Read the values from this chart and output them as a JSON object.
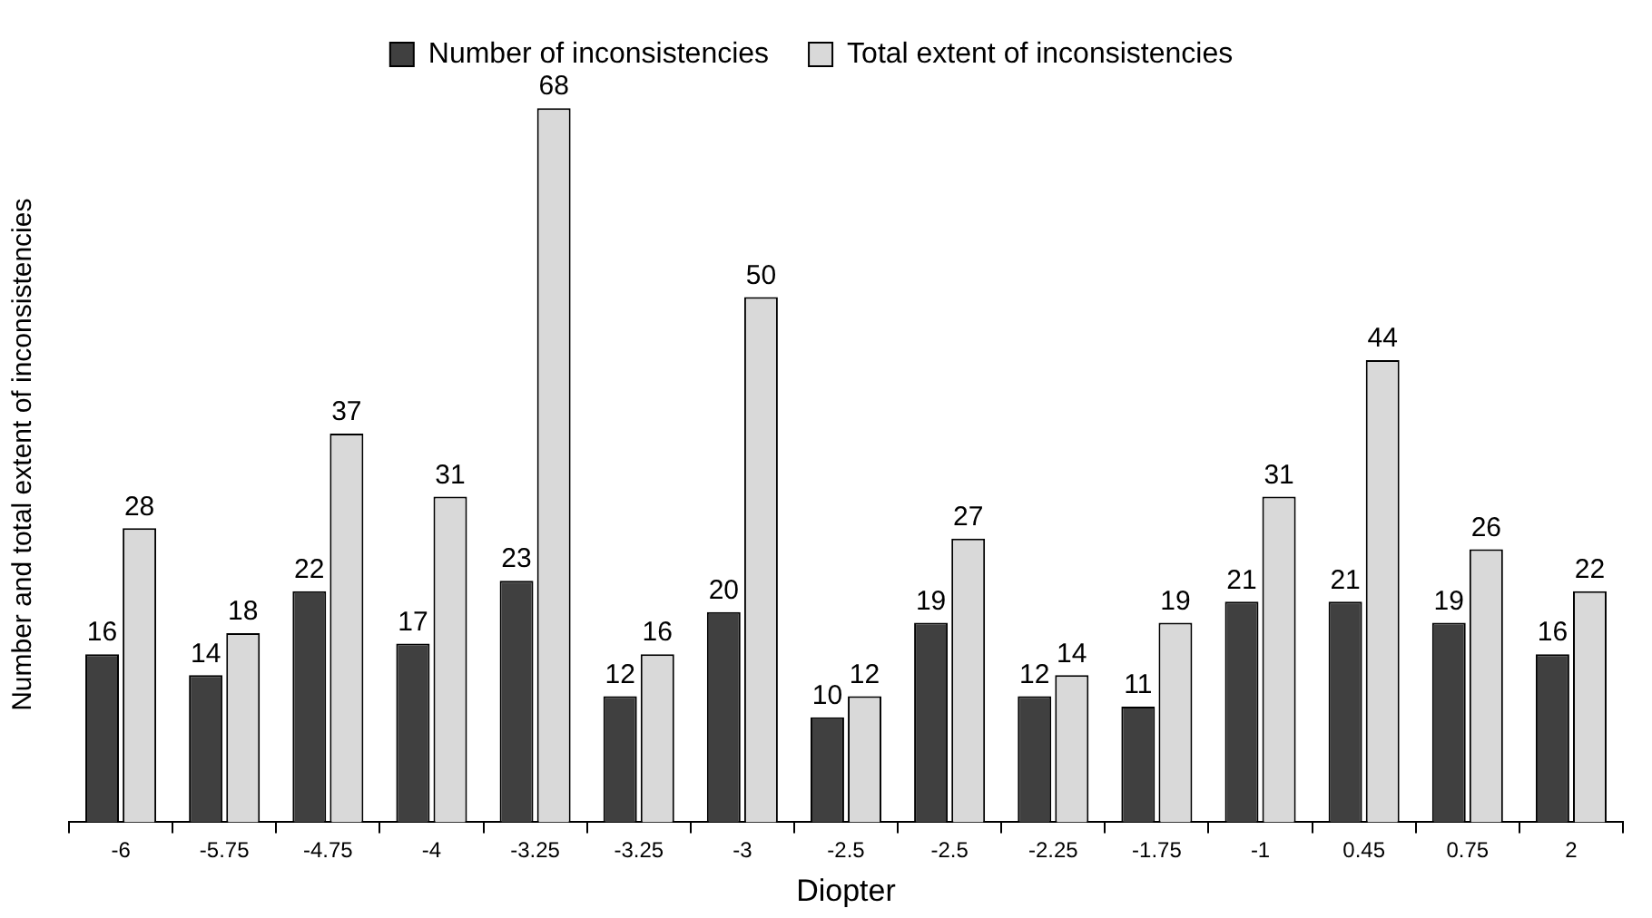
{
  "chart_data": {
    "type": "bar",
    "xlabel": "Diopter",
    "ylabel": "Number and total extent of inconsistencies",
    "categories": [
      "-6",
      "-5.75",
      "-4.75",
      "-4",
      "-3.25",
      "-3.25",
      "-3",
      "-2.5",
      "-2.5",
      "-2.25",
      "-1.75",
      "-1",
      "0.45",
      "0.75",
      "2"
    ],
    "series": [
      {
        "name": "Number of inconsistencies",
        "color": "#404040",
        "values": [
          16,
          14,
          22,
          17,
          23,
          12,
          20,
          10,
          19,
          12,
          11,
          21,
          21,
          19,
          16
        ]
      },
      {
        "name": "Total extent of inconsistencies",
        "color": "#d9d9d9",
        "values": [
          28,
          18,
          37,
          31,
          68,
          16,
          50,
          12,
          27,
          14,
          19,
          31,
          44,
          26,
          22
        ]
      }
    ],
    "data_labels": true,
    "legend": "top",
    "grid": false
  }
}
